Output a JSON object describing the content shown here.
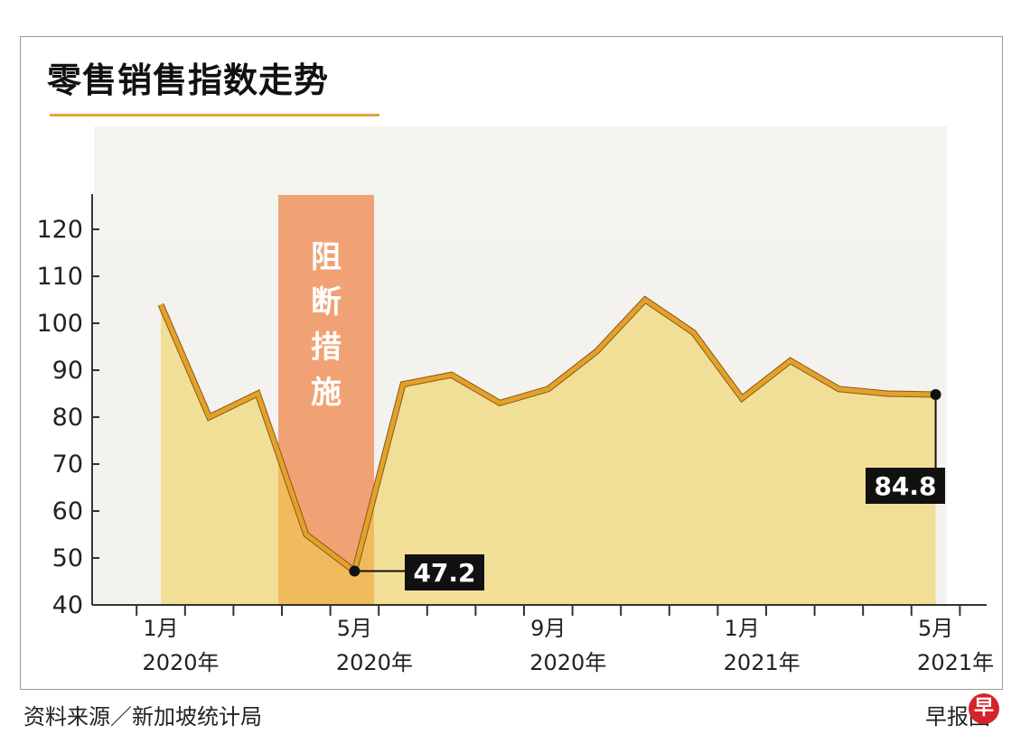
{
  "header": {
    "title": "零售销售指数走势"
  },
  "footer": {
    "source": "资料来源／新加坡统计局",
    "credit": "早报图",
    "logo_char": "早"
  },
  "annotation": {
    "band_label": [
      "阻",
      "断",
      "措",
      "施"
    ]
  },
  "colors": {
    "line": "#e3a12c",
    "band": "#ef8d55",
    "axis": "#333333",
    "callout_bg": "#111111",
    "underline": "#e6a63a"
  },
  "chart_data": {
    "type": "line",
    "title": "零售销售指数走势",
    "x": [
      "2020-01",
      "2020-02",
      "2020-03",
      "2020-04",
      "2020-05",
      "2020-06",
      "2020-07",
      "2020-08",
      "2020-09",
      "2020-10",
      "2020-11",
      "2020-12",
      "2021-01",
      "2021-02",
      "2021-03",
      "2021-04",
      "2021-05"
    ],
    "series": [
      {
        "values": [
          104,
          80,
          85,
          55,
          47.2,
          87,
          89,
          83,
          86,
          94,
          105,
          98,
          84,
          92,
          86,
          85,
          84.8
        ]
      }
    ],
    "ylim": [
      40,
      120
    ],
    "yticks": [
      "40",
      "50",
      "60",
      "70",
      "80",
      "90",
      "100",
      "110",
      "120"
    ],
    "xticks": [
      {
        "month": "1月",
        "year": "2020年"
      },
      {
        "month": "5月",
        "year": "2020年"
      },
      {
        "month": "9月",
        "year": "2020年"
      },
      {
        "month": "1月",
        "year": "2021年"
      },
      {
        "month": "5月",
        "year": "2021年"
      }
    ],
    "data_labels": [
      {
        "index": 4,
        "text": "47.2"
      },
      {
        "index": 16,
        "text": "84.8"
      }
    ],
    "shaded_period": {
      "from": "2020-04",
      "to": "2020-05",
      "label": "阻断措施"
    },
    "grid": false
  }
}
